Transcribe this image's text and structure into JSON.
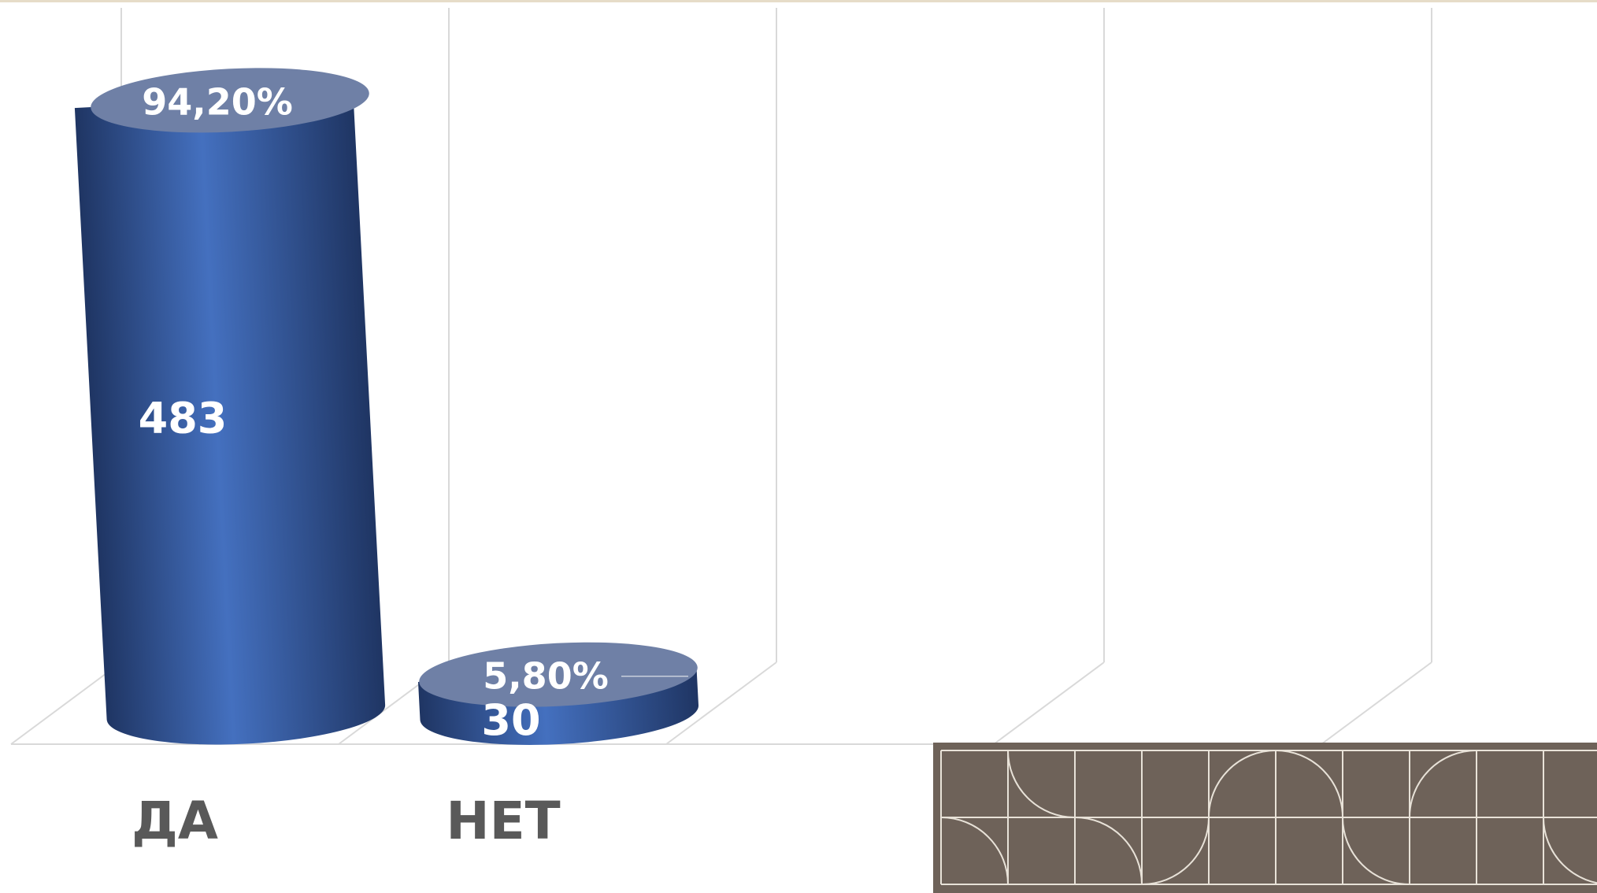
{
  "chart_data": {
    "type": "bar",
    "style": "3d-cylinder",
    "categories": [
      "ДА",
      "НЕТ"
    ],
    "values": [
      483,
      30
    ],
    "percent_labels": [
      "94,20%",
      "5,80%"
    ],
    "value_labels": [
      "483",
      "30"
    ],
    "title": "",
    "xlabel": "",
    "ylabel": "",
    "ylim": [
      0,
      500
    ],
    "grid": true,
    "legend": "none",
    "colors": {
      "bar_dark": "#1f3563",
      "bar_mid": "#4470bf",
      "bar_top": "#6f80a6",
      "label_text": "#ffffff",
      "category_text": "#595959",
      "grid": "#d9d9d9",
      "panel_bg": "#6e6259",
      "panel_line": "#e8e2d8",
      "top_rule": "#e6dcc8"
    }
  },
  "decorations": {
    "corner_panel": "geometric-tile-pattern"
  }
}
